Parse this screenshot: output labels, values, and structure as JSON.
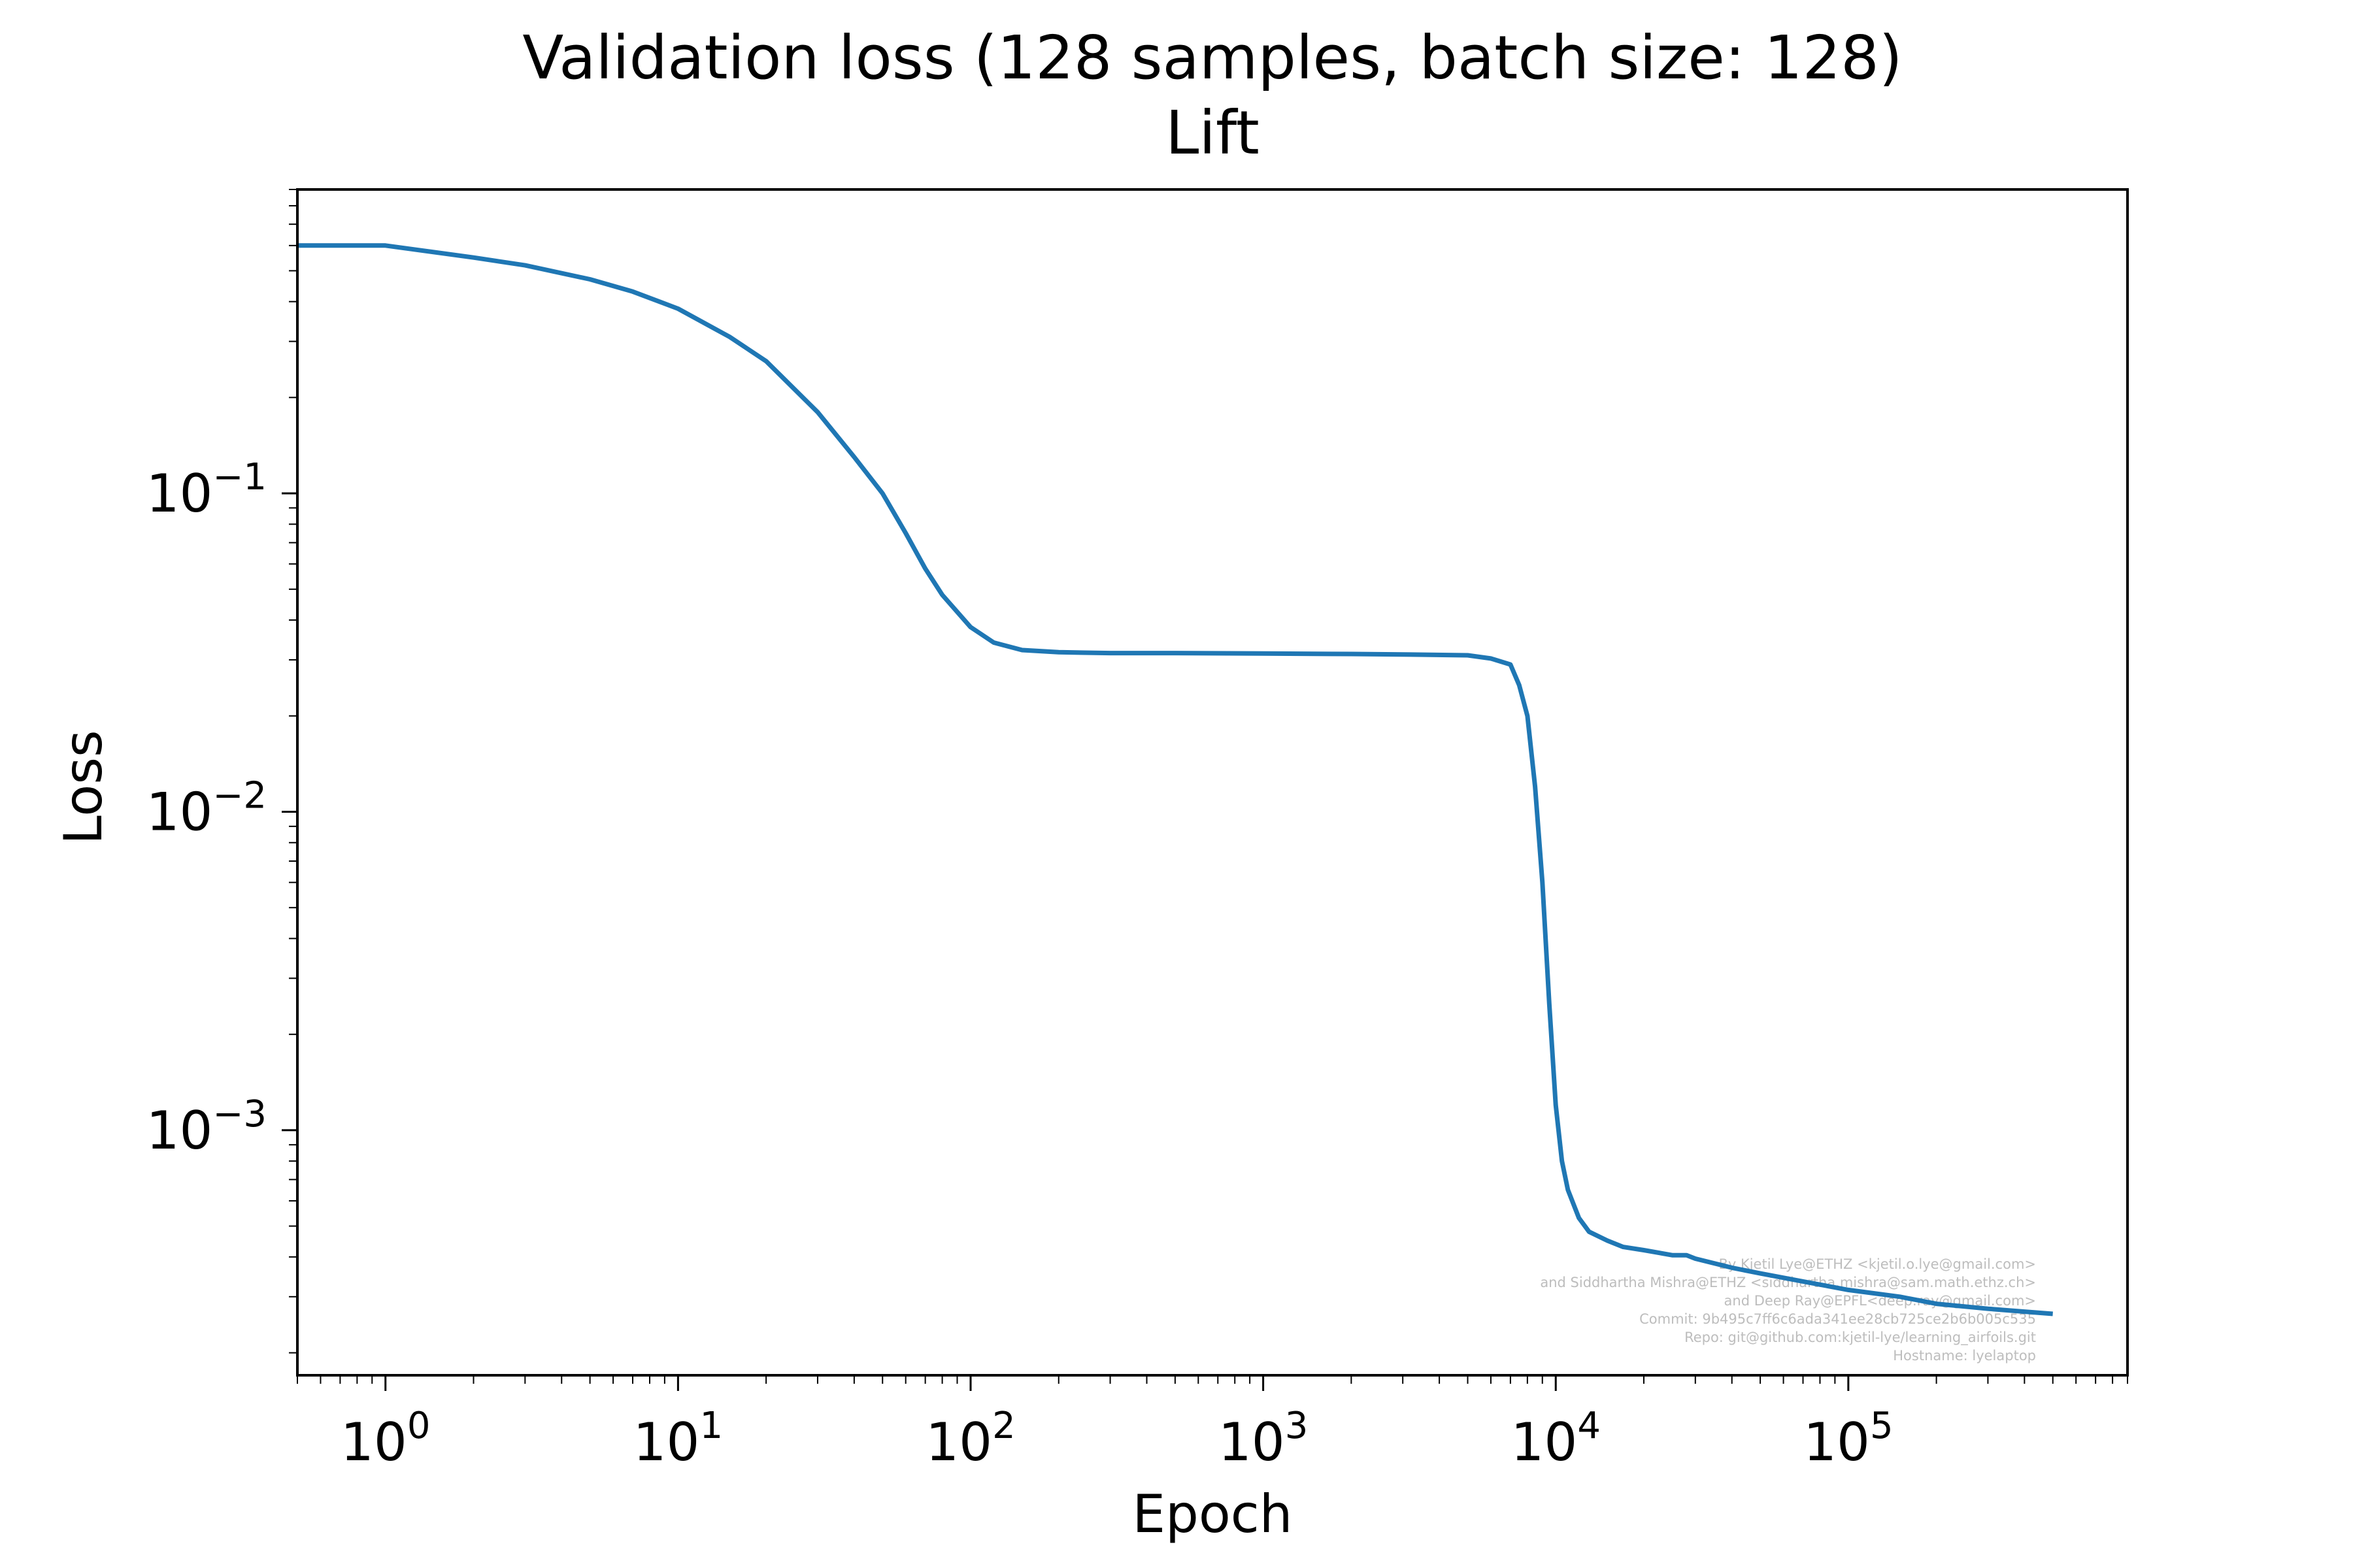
{
  "chart_data": {
    "type": "line",
    "title": "Validation loss (128 samples, batch size: 128)",
    "subtitle": "Lift",
    "xlabel": "Epoch",
    "ylabel": "Loss",
    "x_scale": "log",
    "y_scale": "log",
    "xlim": [
      0.5,
      900000
    ],
    "ylim": [
      0.00017,
      0.9
    ],
    "x_ticks": [
      {
        "value": 1,
        "base": "10",
        "exp": "0"
      },
      {
        "value": 10,
        "base": "10",
        "exp": "1"
      },
      {
        "value": 100,
        "base": "10",
        "exp": "2"
      },
      {
        "value": 1000,
        "base": "10",
        "exp": "3"
      },
      {
        "value": 10000,
        "base": "10",
        "exp": "4"
      },
      {
        "value": 100000,
        "base": "10",
        "exp": "5"
      }
    ],
    "y_ticks": [
      {
        "value": 0.1,
        "base": "10",
        "exp": "−1"
      },
      {
        "value": 0.01,
        "base": "10",
        "exp": "−2"
      },
      {
        "value": 0.001,
        "base": "10",
        "exp": "−3"
      }
    ],
    "grid": false,
    "line_color": "#1f77b4",
    "series": [
      {
        "x": [
          0.5,
          1,
          2,
          3,
          5,
          7,
          10,
          15,
          20,
          30,
          40,
          50,
          60,
          70,
          80,
          100,
          120,
          150,
          200,
          300,
          500,
          1000,
          2000,
          3000,
          5000,
          6000,
          7000,
          7500,
          8000,
          8500,
          9000,
          9500,
          10000,
          10500,
          11000,
          12000,
          13000,
          15000,
          17000,
          20000,
          25000,
          28000,
          30000,
          40000,
          50000,
          70000,
          100000,
          150000,
          200000,
          300000,
          500000
        ],
        "y": [
          0.6,
          0.6,
          0.55,
          0.52,
          0.47,
          0.43,
          0.38,
          0.31,
          0.26,
          0.18,
          0.13,
          0.1,
          0.075,
          0.058,
          0.048,
          0.038,
          0.034,
          0.0322,
          0.0317,
          0.0315,
          0.0315,
          0.0314,
          0.0313,
          0.0312,
          0.031,
          0.0303,
          0.029,
          0.025,
          0.02,
          0.012,
          0.006,
          0.0025,
          0.0012,
          0.0008,
          0.00065,
          0.00053,
          0.00048,
          0.00045,
          0.00043,
          0.00042,
          0.000405,
          0.000405,
          0.000395,
          0.00037,
          0.000355,
          0.000335,
          0.000315,
          0.0003,
          0.000285,
          0.000275,
          0.000265
        ]
      }
    ]
  },
  "credits": [
    "By Kjetil Lye@ETHZ <kjetil.o.lye@gmail.com>",
    "and Siddhartha Mishra@ETHZ <siddhartha.mishra@sam.math.ethz.ch>",
    "and Deep Ray@EPFL<deep.ray@gmail.com>",
    "Commit: 9b495c7ff6c6ada341ee28cb725ce2b6b005c535",
    "Repo: git@github.com:kjetil-lye/learning_airfoils.git",
    "Hostname: lyelaptop"
  ]
}
